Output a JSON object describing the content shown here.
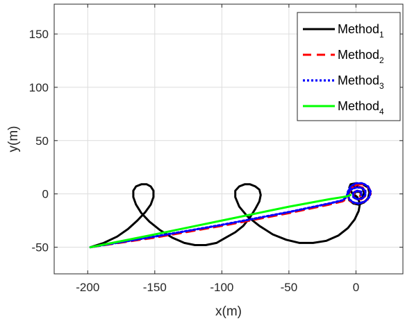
{
  "chart_data": {
    "type": "line",
    "title": "",
    "xlabel": "x(m)",
    "ylabel": "y(m)",
    "xlim": [
      -225,
      35
    ],
    "ylim": [
      -75,
      178
    ],
    "xticks": [
      -200,
      -150,
      -100,
      -50,
      0
    ],
    "yticks": [
      -50,
      0,
      50,
      100,
      150
    ],
    "xtick_labels": [
      "-200",
      "-150",
      "-100",
      "-50",
      "0"
    ],
    "ytick_labels": [
      "-50",
      "0",
      "50",
      "100",
      "150"
    ],
    "grid": true,
    "legend_position": "top-right",
    "series": [
      {
        "name": "Method",
        "subscript": "1",
        "color": "#000000",
        "style": "solid",
        "points": [
          [
            -198,
            -50
          ],
          [
            -188,
            -46
          ],
          [
            -178,
            -40
          ],
          [
            -170,
            -33
          ],
          [
            -163,
            -25
          ],
          [
            -157,
            -17
          ],
          [
            -153,
            -10
          ],
          [
            -151,
            -3
          ],
          [
            -151,
            3
          ],
          [
            -153,
            7
          ],
          [
            -156,
            9
          ],
          [
            -160,
            9
          ],
          [
            -164,
            7
          ],
          [
            -166,
            3
          ],
          [
            -166,
            -3
          ],
          [
            -164,
            -10
          ],
          [
            -160,
            -18
          ],
          [
            -154,
            -26
          ],
          [
            -146,
            -34
          ],
          [
            -137,
            -41
          ],
          [
            -128,
            -46
          ],
          [
            -120,
            -48
          ],
          [
            -112,
            -48
          ],
          [
            -104,
            -46
          ],
          [
            -97,
            -41
          ],
          [
            -90,
            -36
          ],
          [
            -84,
            -30
          ],
          [
            -79,
            -22
          ],
          [
            -75,
            -14
          ],
          [
            -72,
            -7
          ],
          [
            -71,
            -1
          ],
          [
            -72,
            4
          ],
          [
            -75,
            7
          ],
          [
            -79,
            9
          ],
          [
            -83,
            9
          ],
          [
            -87,
            7
          ],
          [
            -90,
            3
          ],
          [
            -90,
            -3
          ],
          [
            -87,
            -12
          ],
          [
            -81,
            -21
          ],
          [
            -72,
            -30
          ],
          [
            -62,
            -38
          ],
          [
            -52,
            -43
          ],
          [
            -42,
            -46
          ],
          [
            -32,
            -46
          ],
          [
            -22,
            -44
          ],
          [
            -13,
            -39
          ],
          [
            -6,
            -32
          ],
          [
            -1,
            -24
          ],
          [
            2,
            -16
          ],
          [
            3,
            -9
          ],
          [
            1,
            -3
          ],
          [
            -3,
            1
          ],
          [
            -5,
            6
          ],
          [
            -4,
            9
          ],
          [
            0,
            10
          ],
          [
            5,
            9
          ],
          [
            9,
            6
          ],
          [
            10,
            1
          ],
          [
            9,
            -4
          ],
          [
            6,
            -8
          ],
          [
            2,
            -10
          ],
          [
            -2,
            -9
          ],
          [
            -5,
            -6
          ],
          [
            -6,
            -1
          ],
          [
            -5,
            4
          ],
          [
            -2,
            7
          ],
          [
            2,
            7
          ],
          [
            5,
            5
          ],
          [
            6,
            1
          ],
          [
            5,
            -3
          ],
          [
            2,
            -5
          ],
          [
            -1,
            -4
          ],
          [
            -2,
            -1
          ],
          [
            0,
            2
          ],
          [
            3,
            2
          ],
          [
            4,
            -1
          ]
        ]
      },
      {
        "name": "Method",
        "subscript": "2",
        "color": "#ff0000",
        "style": "dashed",
        "points": [
          [
            -198,
            -50
          ],
          [
            -150,
            -41
          ],
          [
            -100,
            -30
          ],
          [
            -50,
            -18
          ],
          [
            -20,
            -10
          ],
          [
            -10,
            -7
          ],
          [
            -6,
            -4
          ],
          [
            -5,
            1
          ],
          [
            -3,
            6
          ],
          [
            1,
            9
          ],
          [
            6,
            9
          ],
          [
            10,
            5
          ],
          [
            11,
            0
          ],
          [
            9,
            -5
          ],
          [
            5,
            -8
          ],
          [
            0,
            -9
          ],
          [
            -4,
            -7
          ],
          [
            -6,
            -3
          ],
          [
            -6,
            2
          ],
          [
            -3,
            6
          ],
          [
            1,
            7
          ],
          [
            5,
            6
          ],
          [
            7,
            2
          ],
          [
            7,
            -2
          ],
          [
            4,
            -5
          ],
          [
            0,
            -5
          ],
          [
            -2,
            -2
          ],
          [
            -1,
            2
          ],
          [
            2,
            3
          ],
          [
            4,
            1
          ],
          [
            3,
            -2
          ]
        ]
      },
      {
        "name": "Method",
        "subscript": "3",
        "color": "#0000ff",
        "style": "dotted",
        "points": [
          [
            -198,
            -50
          ],
          [
            -150,
            -40
          ],
          [
            -100,
            -29
          ],
          [
            -50,
            -17
          ],
          [
            -20,
            -9
          ],
          [
            -10,
            -6
          ],
          [
            -7,
            -3
          ],
          [
            -6,
            2
          ],
          [
            -4,
            7
          ],
          [
            0,
            10
          ],
          [
            5,
            10
          ],
          [
            9,
            7
          ],
          [
            11,
            2
          ],
          [
            10,
            -3
          ],
          [
            7,
            -7
          ],
          [
            2,
            -9
          ],
          [
            -2,
            -8
          ],
          [
            -5,
            -5
          ],
          [
            -6,
            0
          ],
          [
            -4,
            4
          ],
          [
            0,
            6
          ],
          [
            4,
            6
          ],
          [
            7,
            3
          ],
          [
            7,
            -1
          ],
          [
            5,
            -4
          ],
          [
            1,
            -5
          ],
          [
            -2,
            -3
          ],
          [
            -2,
            1
          ],
          [
            1,
            3
          ],
          [
            4,
            2
          ],
          [
            4,
            -1
          ]
        ]
      },
      {
        "name": "Method",
        "subscript": "4",
        "color": "#00ff00",
        "style": "solid",
        "points": [
          [
            -198,
            -50
          ],
          [
            -150,
            -38
          ],
          [
            -100,
            -25
          ],
          [
            -50,
            -12
          ],
          [
            -20,
            -5
          ],
          [
            -10,
            -3
          ],
          [
            -6,
            -2
          ],
          [
            -4,
            -1
          ]
        ]
      }
    ]
  }
}
